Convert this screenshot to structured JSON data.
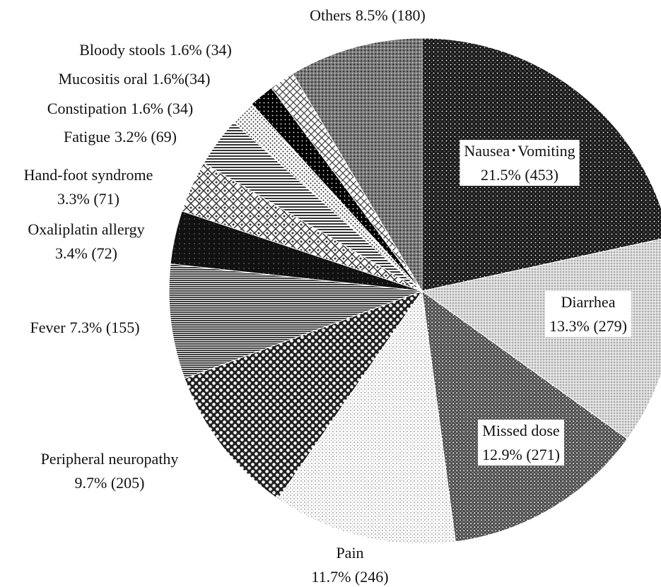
{
  "chart_data": {
    "type": "pie",
    "categories": [
      "Nausea･Vomiting",
      "Diarrhea",
      "Missed dose",
      "Pain",
      "Peripheral neuropathy",
      "Fever",
      "Oxaliplatin allergy",
      "Hand-foot syndrome",
      "Fatigue",
      "Constipation",
      "Mucositis oral",
      "Bloody stools",
      "Others"
    ],
    "values": [
      21.5,
      13.3,
      12.9,
      11.7,
      9.7,
      7.3,
      3.4,
      3.3,
      3.2,
      1.6,
      1.6,
      1.6,
      8.5
    ],
    "value_labels": [
      "21.5% (453)",
      "13.3% (279)",
      "12.9% (271)",
      "11.7% (246)",
      "9.7% (205)",
      "7.3% (155)",
      "3.4% (72)",
      "3.3% (71)",
      "3.2% (69)",
      "1.6% (34)",
      "1.6%(34)",
      "1.6% (34)",
      "8.5% (180)"
    ]
  }
}
